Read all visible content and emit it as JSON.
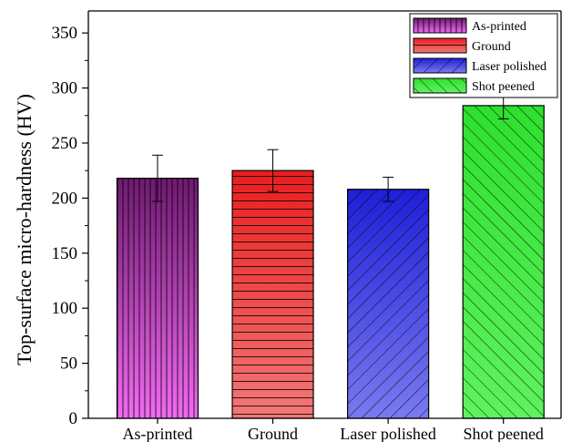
{
  "chart_data": {
    "type": "bar",
    "categories": [
      "As-printed",
      "Ground",
      "Laser polished",
      "Shot peened"
    ],
    "values": [
      218,
      225,
      208,
      284
    ],
    "errors": [
      21,
      19,
      11,
      12
    ],
    "xlabel": "",
    "ylabel": "Top-surface micro-hardness  (HV)",
    "ylim": [
      0,
      370
    ],
    "yticks": [
      0,
      50,
      100,
      150,
      200,
      250,
      300,
      350
    ],
    "grid": false,
    "legend": {
      "position": "top-right",
      "entries": [
        "As-printed",
        "Ground",
        "Laser polished",
        "Shot peened"
      ]
    },
    "colors": [
      {
        "top": "#6e1a70",
        "bottom": "#f26af2",
        "hatch": "vertical"
      },
      {
        "top": "#e81d1d",
        "bottom": "#f27878",
        "hatch": "horizontal"
      },
      {
        "top": "#1f1fd8",
        "bottom": "#7a7af0",
        "hatch": "diagonal-down"
      },
      {
        "top": "#2ee02e",
        "bottom": "#5ff25f",
        "hatch": "diagonal-up"
      }
    ]
  }
}
